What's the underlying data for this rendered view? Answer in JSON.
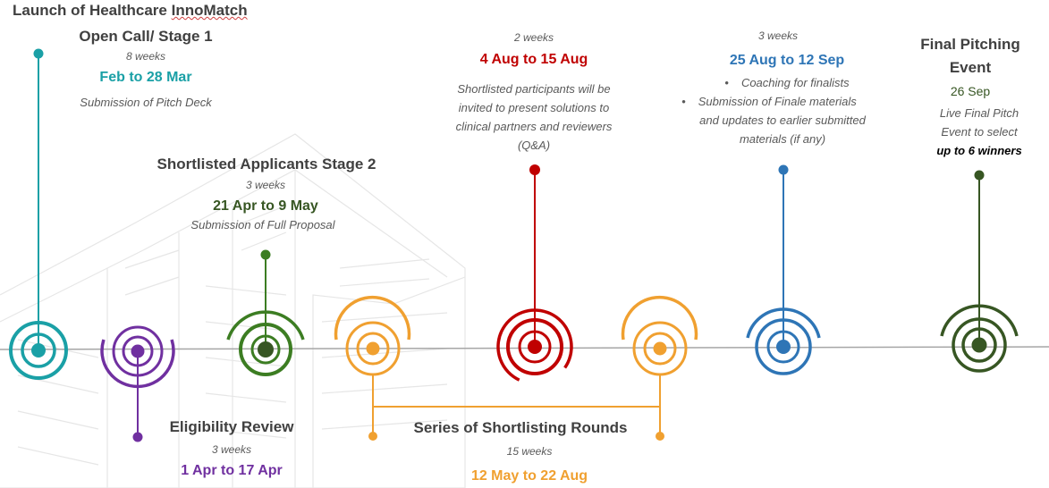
{
  "colors": {
    "teal": "#1aa0a6",
    "purple": "#7030a0",
    "green": "#3c7d22",
    "orange": "#f0a030",
    "red": "#c00000",
    "blue": "#2e75b6",
    "darkgreen": "#375623",
    "axis": "#a6a6a6"
  },
  "milestones": {
    "launch": {
      "heading_line1": "Launch of Healthcare ",
      "heading_innomatch": "InnoMatch",
      "heading_line2": "Open Call/ Stage 1",
      "duration": "8 weeks",
      "dates": "Feb to 28 Mar",
      "description": "Submission of Pitch Deck"
    },
    "eligibility": {
      "heading": "Eligibility Review",
      "duration": "3 weeks",
      "dates": "1 Apr to 17 Apr"
    },
    "shortlisted": {
      "heading": "Shortlisted Applicants Stage 2",
      "duration": "3 weeks",
      "dates": "21 Apr to 9 May",
      "description": "Submission of Full Proposal"
    },
    "rounds": {
      "heading": "Series of Shortlisting Rounds",
      "duration": "15 weeks",
      "dates": "12 May to 22 Aug"
    },
    "clinical": {
      "duration": "2 weeks",
      "dates": "4 Aug to 15 Aug",
      "desc_line1": "Shortlisted participants will be",
      "desc_line2": "invited to present solutions to",
      "desc_line3": "clinical partners and reviewers",
      "desc_line4": "(Q&A)"
    },
    "coaching": {
      "duration": "3 weeks",
      "dates": "25 Aug to 12 Sep",
      "bullet1": "Coaching for finalists",
      "bullet2_line1": "Submission of Finale materials",
      "bullet2_line2": "and updates to earlier submitted",
      "bullet2_line3": "materials (if any)"
    },
    "final": {
      "heading_line1": "Final Pitching",
      "heading_line2": "Event",
      "date": "26 Sep",
      "desc_line1": "Live Final Pitch",
      "desc_line2": "Event to select",
      "desc_line3": "up to 6 winners"
    }
  }
}
